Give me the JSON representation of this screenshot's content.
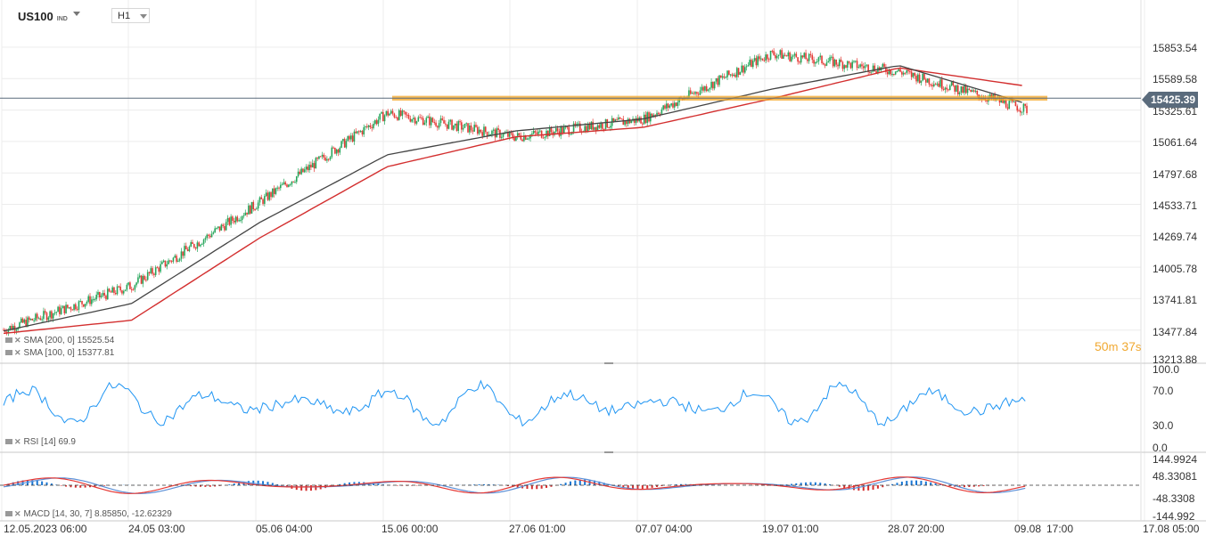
{
  "header": {
    "symbol": "US100",
    "symbol_type": "IND",
    "timeframe": "H1"
  },
  "main_chart": {
    "price_axis": [
      "15853.54",
      "15589.58",
      "15325.61",
      "15061.64",
      "14797.68",
      "14533.71",
      "14269.74",
      "14005.78",
      "13741.81",
      "13477.84",
      "13213.88"
    ],
    "current_price": "15425.39",
    "countdown": {
      "minutes": "50",
      "m": "m",
      "seconds": "37",
      "s": "s"
    },
    "indicators": [
      {
        "label": "SMA [200, 0] 15525.54",
        "color": "#d32f2f"
      },
      {
        "label": "SMA [100, 0] 15377.81",
        "color": "#444444"
      }
    ],
    "resistance_zone": {
      "low": 15405,
      "high": 15445,
      "color": "#f5a623"
    }
  },
  "rsi_panel": {
    "label": "RSI [14] 69.9",
    "axis": [
      "100.0",
      "70.0",
      "30.0",
      "0.0"
    ],
    "color": "#2196f3"
  },
  "macd_panel": {
    "label": "MACD [14, 30, 7] 8.85850, -12.62329",
    "axis": [
      "144.9924",
      "48.33081",
      "-48.3308",
      "-144.992"
    ]
  },
  "time_axis": [
    "12.05.2023 06:00",
    "24.05 03:00",
    "05.06 04:00",
    "15.06 00:00",
    "27.06 01:00",
    "07.07 04:00",
    "19.07 01:00",
    "28.07 20:00",
    "09.08",
    "17:00",
    "17.08 05:00"
  ],
  "colors": {
    "up": "#26a65b",
    "down": "#e53935",
    "grid": "#ececec",
    "rsi": "#2196f3",
    "macd_line": "#e53935",
    "signal_line": "#5c8fd6",
    "hist_pos": "#1976d2",
    "hist_neg": "#d32f2f"
  },
  "chart_data": {
    "type": "line",
    "title": "US100 H1",
    "x": [
      "12.05.2023 06:00",
      "24.05 03:00",
      "05.06 04:00",
      "15.06 00:00",
      "27.06 01:00",
      "07.07 04:00",
      "19.07 01:00",
      "28.07 20:00",
      "09.08 17:00"
    ],
    "series": [
      {
        "name": "US100",
        "values": [
          13480,
          13850,
          14550,
          15300,
          15100,
          15250,
          15800,
          15650,
          15330
        ]
      },
      {
        "name": "SMA [100, 0]",
        "values": [
          13470,
          13700,
          14380,
          14950,
          15150,
          15250,
          15500,
          15700,
          15378
        ]
      },
      {
        "name": "SMA [200, 0]",
        "values": [
          13450,
          13560,
          14250,
          14850,
          15100,
          15180,
          15420,
          15680,
          15526
        ]
      }
    ],
    "ylim": [
      13213.88,
      15853.54
    ],
    "ylabel": "",
    "current_price": 15425.39
  }
}
